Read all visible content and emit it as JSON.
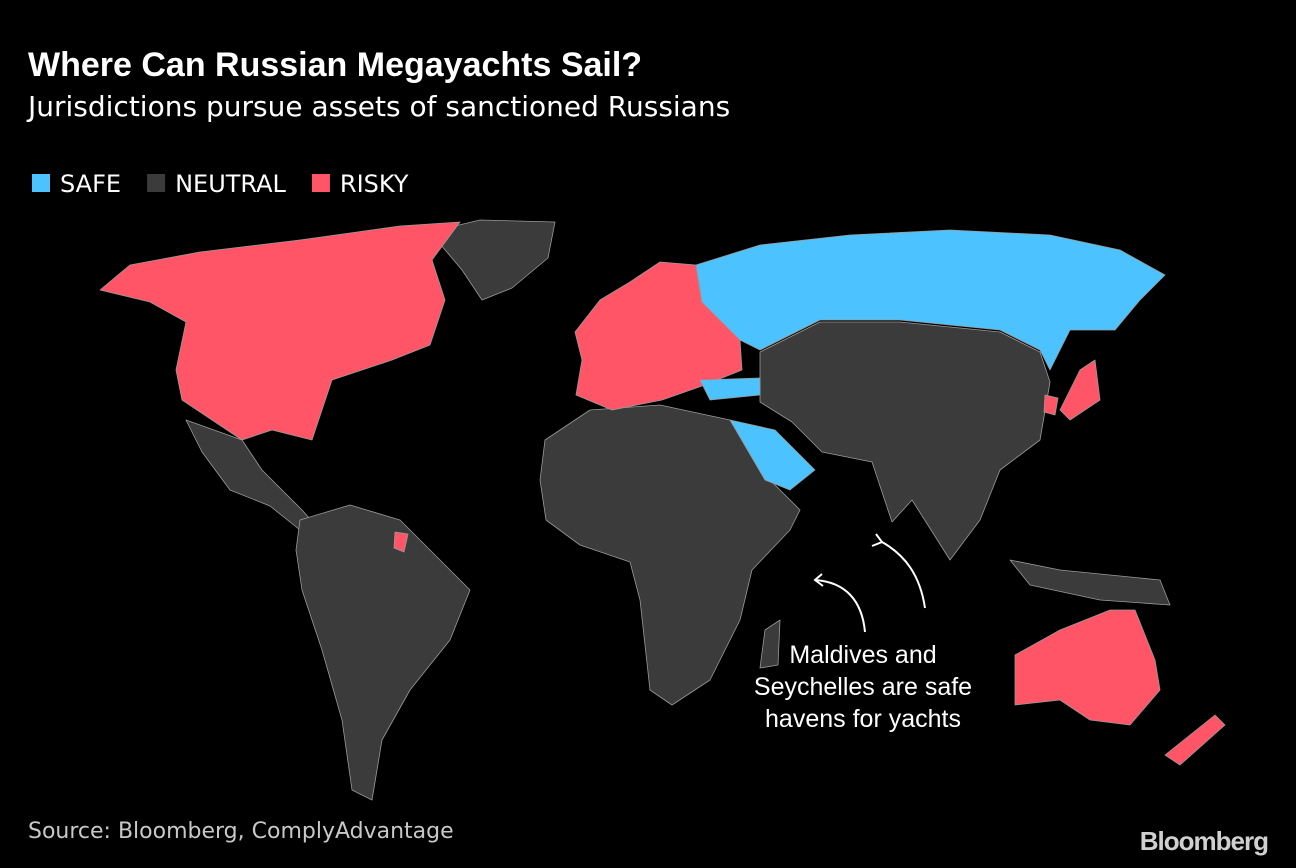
{
  "header": {
    "title": "Where Can Russian Megayachts Sail?",
    "subtitle": "Jurisdictions pursue assets of sanctioned Russians"
  },
  "legend": [
    {
      "label": "SAFE",
      "color": "#4cc2ff"
    },
    {
      "label": "NEUTRAL",
      "color": "#3b3b3b"
    },
    {
      "label": "RISKY",
      "color": "#ff5566"
    }
  ],
  "annotation": [
    "Maldives and",
    "Seychelles are safe",
    "havens for yachts"
  ],
  "source": "Source: Bloomberg, ComplyAdvantage",
  "logo": "Bloomberg"
}
